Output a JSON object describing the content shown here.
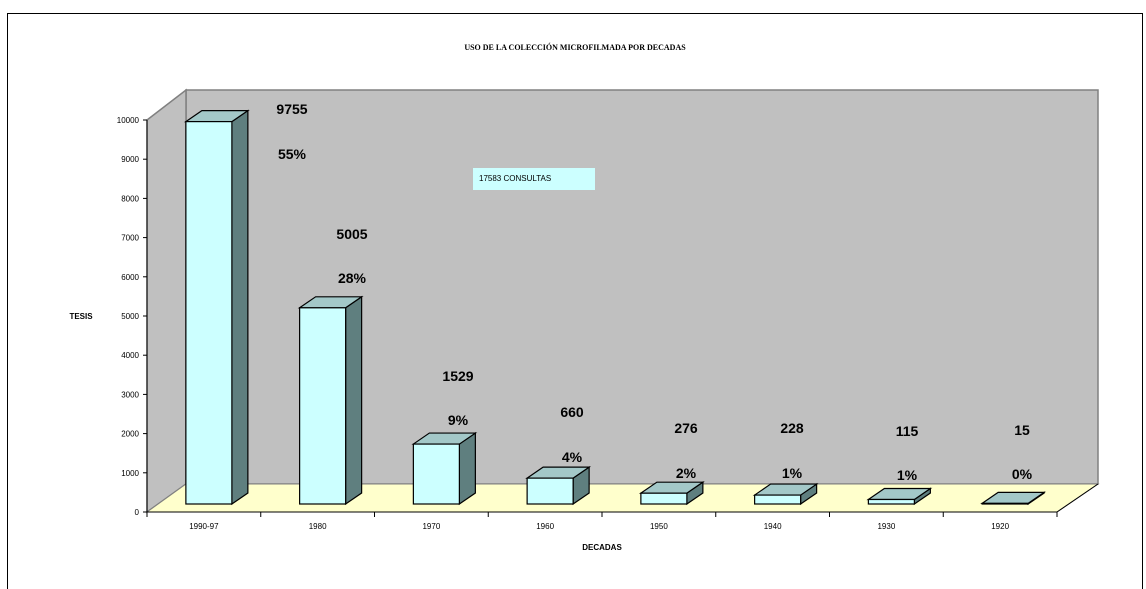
{
  "chart_data": {
    "type": "bar",
    "title": "USO DE LA COLECCIÓN MICROFILMADA POR DECADAS",
    "xlabel": "DECADAS",
    "ylabel": "TESIS",
    "categories": [
      "1990-97",
      "1980",
      "1970",
      "1960",
      "1950",
      "1940",
      "1930",
      "1920"
    ],
    "values": [
      9755,
      5005,
      1529,
      660,
      276,
      228,
      115,
      15
    ],
    "value_labels": [
      "9755",
      "5005",
      "1529",
      "660",
      "276",
      "228",
      "115",
      "15"
    ],
    "percent_labels": [
      "55%",
      "28%",
      "9%",
      "4%",
      "2%",
      "1%",
      "1%",
      "0%"
    ],
    "ylim": [
      0,
      10000
    ],
    "yticks": [
      "0",
      "1000",
      "2000",
      "3000",
      "4000",
      "5000",
      "6000",
      "7000",
      "8000",
      "9000",
      "10000"
    ],
    "annotation": "17583 CONSULTAS",
    "colors": {
      "bar_front": "#ccffff",
      "bar_side": "#5f7f7f",
      "bar_top": "#a3c8c8",
      "back_wall": "#c0c0c0",
      "floor": "#ffffcc",
      "annotation_bg": "#ccffff"
    }
  }
}
